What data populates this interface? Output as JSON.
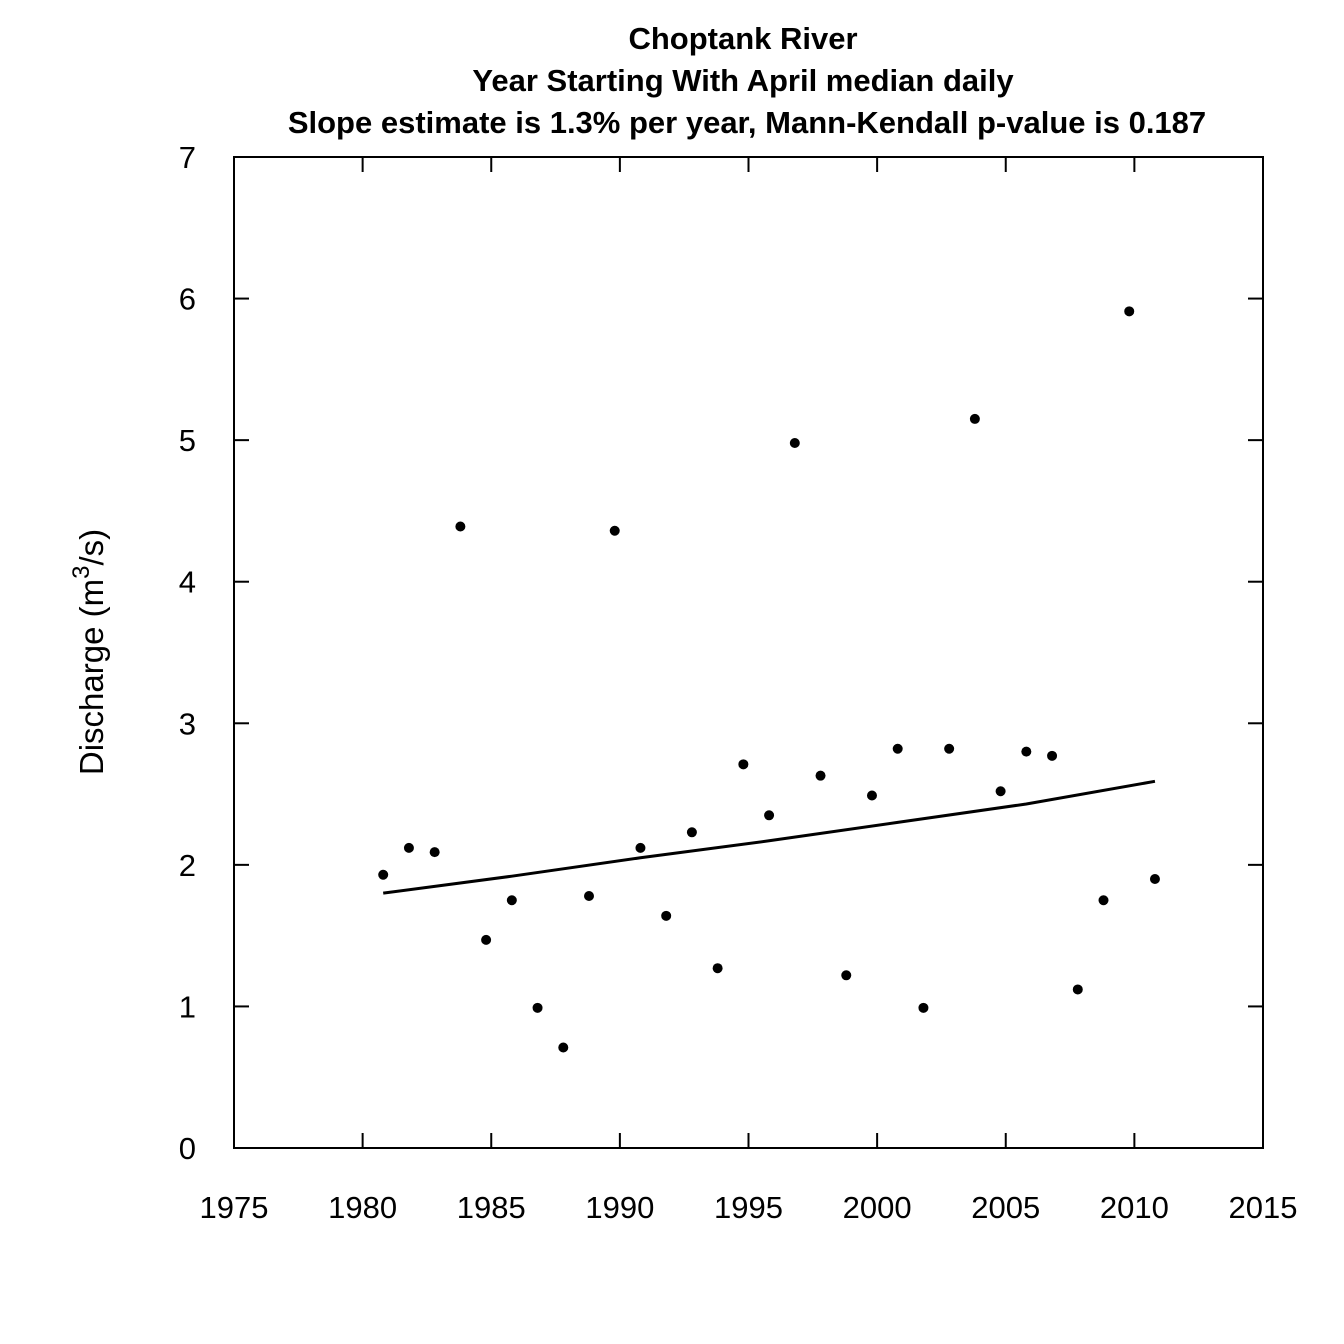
{
  "chart_data": {
    "type": "scatter",
    "title": [
      "Choptank River",
      "Year Starting With April  median daily",
      "Slope estimate is 1.3% per year, Mann-Kendall p-value is 0.187"
    ],
    "xlabel": "",
    "ylabel": {
      "prefix": "Discharge (m",
      "superscript": "3",
      "suffix": "/s)"
    },
    "xlim": [
      1975,
      2015
    ],
    "ylim": [
      0,
      7
    ],
    "xticks": [
      1975,
      1980,
      1985,
      1990,
      1995,
      2000,
      2005,
      2010,
      2015
    ],
    "yticks": [
      0,
      1,
      2,
      3,
      4,
      5,
      6,
      7
    ],
    "grid": false,
    "legend": "none",
    "series": [
      {
        "kind": "points",
        "x": [
          1980.8,
          1981.8,
          1982.8,
          1983.8,
          1984.8,
          1985.8,
          1986.8,
          1987.8,
          1988.8,
          1989.8,
          1990.8,
          1991.8,
          1992.8,
          1993.8,
          1994.8,
          1995.8,
          1996.8,
          1997.8,
          1998.8,
          1999.8,
          2000.8,
          2001.8,
          2002.8,
          2003.8,
          2004.8,
          2005.8,
          2006.8,
          2007.8,
          2008.8,
          2009.8,
          2010.8
        ],
        "y": [
          1.93,
          2.12,
          2.09,
          4.39,
          1.47,
          1.75,
          0.99,
          0.71,
          1.78,
          4.36,
          2.12,
          1.64,
          2.23,
          1.27,
          2.71,
          2.35,
          4.98,
          2.63,
          1.22,
          2.49,
          2.82,
          0.99,
          2.82,
          5.15,
          2.52,
          2.8,
          2.77,
          1.12,
          1.75,
          5.91,
          1.9
        ]
      },
      {
        "kind": "trend-line",
        "x": [
          1980.8,
          1985.8,
          1990.8,
          1995.8,
          2000.8,
          2005.8,
          2010.8
        ],
        "y": [
          1.8,
          1.92,
          2.05,
          2.17,
          2.3,
          2.43,
          2.59
        ]
      }
    ],
    "colors": {
      "points": "#000000",
      "line": "#000000",
      "axes": "#000000"
    }
  }
}
